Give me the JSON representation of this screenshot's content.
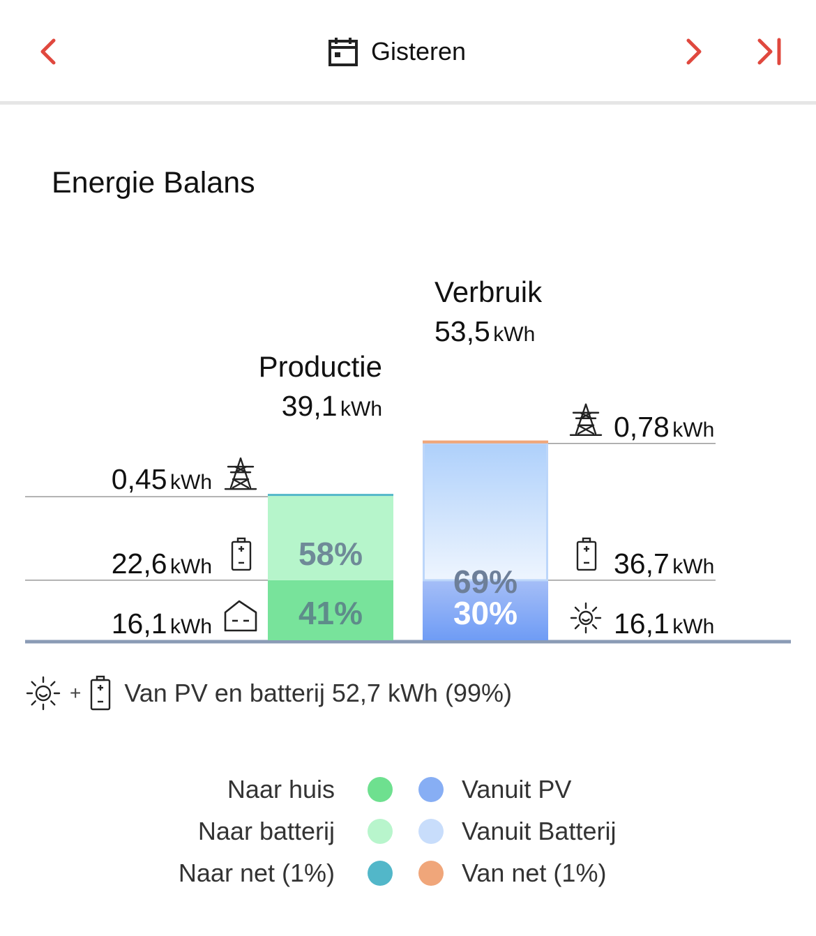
{
  "header": {
    "date_label": "Gisteren",
    "nav_color": "#e0483e"
  },
  "title": "Energie Balans",
  "chart_data": {
    "type": "bar",
    "stacked": true,
    "unit": "kWh",
    "production": {
      "title": "Productie",
      "total_value": "39,1",
      "total": 39.1,
      "segments": [
        {
          "name": "Naar huis",
          "value": 16.1,
          "value_label": "16,1",
          "percent_label": "41%",
          "icon": "house-icon",
          "color": "#78e39b"
        },
        {
          "name": "Naar batterij",
          "value": 22.6,
          "value_label": "22,6",
          "percent_label": "58%",
          "icon": "battery-icon",
          "color": "#b6f5cb"
        },
        {
          "name": "Naar net (1%)",
          "value": 0.45,
          "value_label": "0,45",
          "percent_label": "",
          "icon": "power-pylon-icon",
          "color": "#52b7c9"
        }
      ]
    },
    "consumption": {
      "title": "Verbruik",
      "total_value": "53,5",
      "total": 53.5,
      "segments": [
        {
          "name": "Vanuit PV",
          "value": 16.1,
          "value_label": "16,1",
          "percent_label": "30%",
          "icon": "sun-icon",
          "color": "#7da4f6"
        },
        {
          "name": "Vanuit Batterij",
          "value": 36.7,
          "value_label": "36,7",
          "percent_label": "69%",
          "icon": "battery-icon",
          "color": "#c2dbfb"
        },
        {
          "name": "Van net (1%)",
          "value": 0.78,
          "value_label": "0,78",
          "percent_label": "",
          "icon": "power-pylon-icon",
          "color": "#f0a67a"
        }
      ]
    }
  },
  "summary": {
    "text": "Van PV en batterij 52,7 kWh (99%)",
    "plus": "+"
  },
  "legend": {
    "left": [
      {
        "label": "Naar huis",
        "color": "#6ee08f"
      },
      {
        "label": "Naar batterij",
        "color": "#b8f5cc"
      },
      {
        "label": "Naar net (1%)",
        "color": "#52b7c9"
      }
    ],
    "right": [
      {
        "label": "Vanuit PV",
        "color": "#87aef4"
      },
      {
        "label": "Vanuit Batterij",
        "color": "#c8ddfb"
      },
      {
        "label": "Van net (1%)",
        "color": "#f0a67a"
      }
    ]
  }
}
